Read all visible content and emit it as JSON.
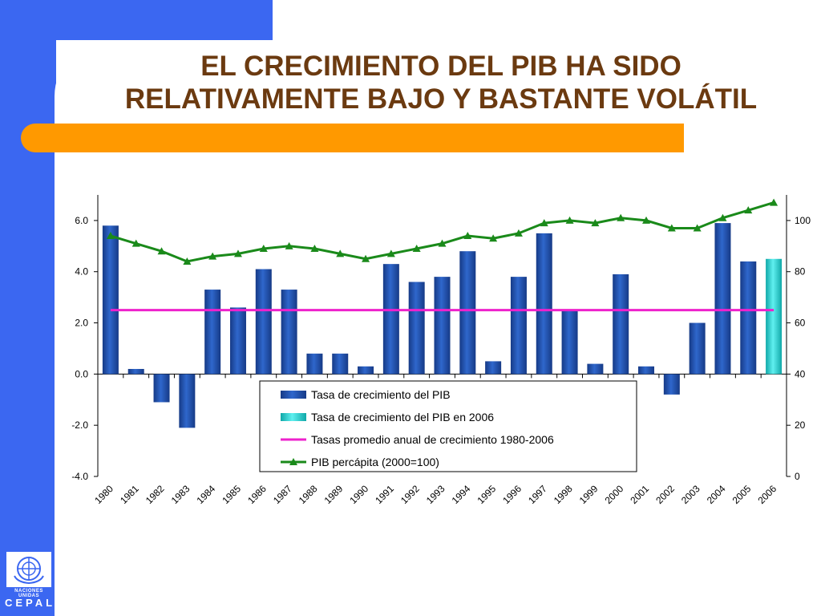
{
  "slide": {
    "title_line1": "EL CRECIMIENTO DEL PIB HA SIDO",
    "title_line2": "RELATIVAMENTE BAJO Y BASTANTE VOLÁTIL",
    "colors": {
      "background_blue": "#3b67f1",
      "accent_orange": "#ff9900",
      "title_brown": "#6b3a10"
    }
  },
  "logo": {
    "org": "NACIONES UNIDAS",
    "name": "CEPAL",
    "icon": "un-emblem-icon"
  },
  "chart_data": {
    "type": "bar",
    "categories": [
      "1980",
      "1981",
      "1982",
      "1983",
      "1984",
      "1985",
      "1986",
      "1987",
      "1988",
      "1989",
      "1990",
      "1991",
      "1992",
      "1993",
      "1994",
      "1995",
      "1996",
      "1997",
      "1998",
      "1999",
      "2000",
      "2001",
      "2002",
      "2003",
      "2004",
      "2005",
      "2006"
    ],
    "left_axis": {
      "ylim": [
        -4,
        7
      ],
      "ticks": [
        "-4.0",
        "-2.0",
        "0.0",
        "2.0",
        "4.0",
        "6.0"
      ]
    },
    "right_axis": {
      "ylim": [
        0,
        110
      ],
      "ticks": [
        "0",
        "20",
        "40",
        "60",
        "80",
        "100"
      ]
    },
    "series": [
      {
        "name": "Tasa de crecimiento del PIB",
        "type": "bar",
        "axis": "left",
        "color": "#1f4fa8",
        "values": [
          5.8,
          0.2,
          -1.1,
          -2.1,
          3.3,
          2.6,
          4.1,
          3.3,
          0.8,
          0.8,
          0.3,
          4.3,
          3.6,
          3.8,
          4.8,
          0.5,
          3.8,
          5.5,
          2.5,
          0.4,
          3.9,
          0.3,
          -0.8,
          2.0,
          5.9,
          4.4,
          null
        ]
      },
      {
        "name": "Tasa de crecimiento del PIB en 2006",
        "type": "bar",
        "axis": "left",
        "color": "#22d4d4",
        "values": [
          null,
          null,
          null,
          null,
          null,
          null,
          null,
          null,
          null,
          null,
          null,
          null,
          null,
          null,
          null,
          null,
          null,
          null,
          null,
          null,
          null,
          null,
          null,
          null,
          null,
          null,
          4.5
        ]
      },
      {
        "name": "Tasas promedio anual de crecimiento 1980-2006",
        "type": "line",
        "axis": "left",
        "color": "#ee22cc",
        "values": [
          2.5,
          2.5,
          2.5,
          2.5,
          2.5,
          2.5,
          2.5,
          2.5,
          2.5,
          2.5,
          2.5,
          2.5,
          2.5,
          2.5,
          2.5,
          2.5,
          2.5,
          2.5,
          2.5,
          2.5,
          2.5,
          2.5,
          2.5,
          2.5,
          2.5,
          2.5,
          2.5
        ]
      },
      {
        "name": "PIB percápita (2000=100)",
        "type": "line",
        "axis": "right",
        "color": "#1a8a1a",
        "values": [
          94,
          91,
          88,
          84,
          86,
          87,
          89,
          90,
          89,
          87,
          85,
          87,
          89,
          91,
          94,
          93,
          95,
          99,
          100,
          99,
          101,
          100,
          97,
          97,
          101,
          104,
          107
        ]
      }
    ],
    "legend_position": "bottom-center",
    "grid": false
  }
}
